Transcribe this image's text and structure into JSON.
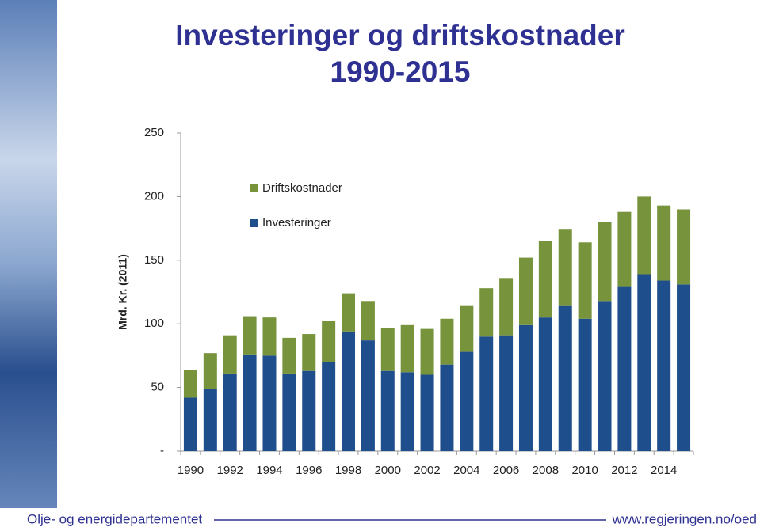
{
  "chart_data": {
    "type": "stacked_bar",
    "title": "Investeringer og driftskostnader 1990-2015",
    "y_label": "Mrd. Kr. (2011)",
    "categories": [
      "1990",
      null,
      "1992",
      null,
      "1994",
      null,
      "1996",
      null,
      "1998",
      null,
      "2000",
      null,
      "2002",
      null,
      "2004",
      null,
      "2006",
      null,
      "2008",
      null,
      "2010",
      null,
      "2012",
      null,
      "2014",
      null
    ],
    "series": [
      {
        "name": "Investeringer",
        "color": "#1f4e8c",
        "values": [
          42,
          49,
          61,
          76,
          75,
          61,
          63,
          70,
          94,
          87,
          63,
          62,
          60,
          68,
          78,
          90,
          91,
          99,
          105,
          114,
          104,
          118,
          129,
          139,
          134,
          131
        ]
      },
      {
        "name": "Driftskostnader",
        "color": "#77933c",
        "values": [
          22,
          28,
          30,
          30,
          30,
          28,
          29,
          32,
          30,
          31,
          34,
          37,
          36,
          36,
          36,
          38,
          45,
          53,
          60,
          60,
          60,
          62,
          59,
          61,
          59,
          59
        ]
      }
    ],
    "ylim": [
      0,
      250
    ],
    "yticks": [
      {
        "value": 0,
        "label": "-"
      },
      50,
      100,
      150,
      200,
      250
    ],
    "legend": "upper left"
  },
  "footer": {
    "left": "Olje- og energidepartementet",
    "right": "www.regjeringen.no/oed"
  }
}
